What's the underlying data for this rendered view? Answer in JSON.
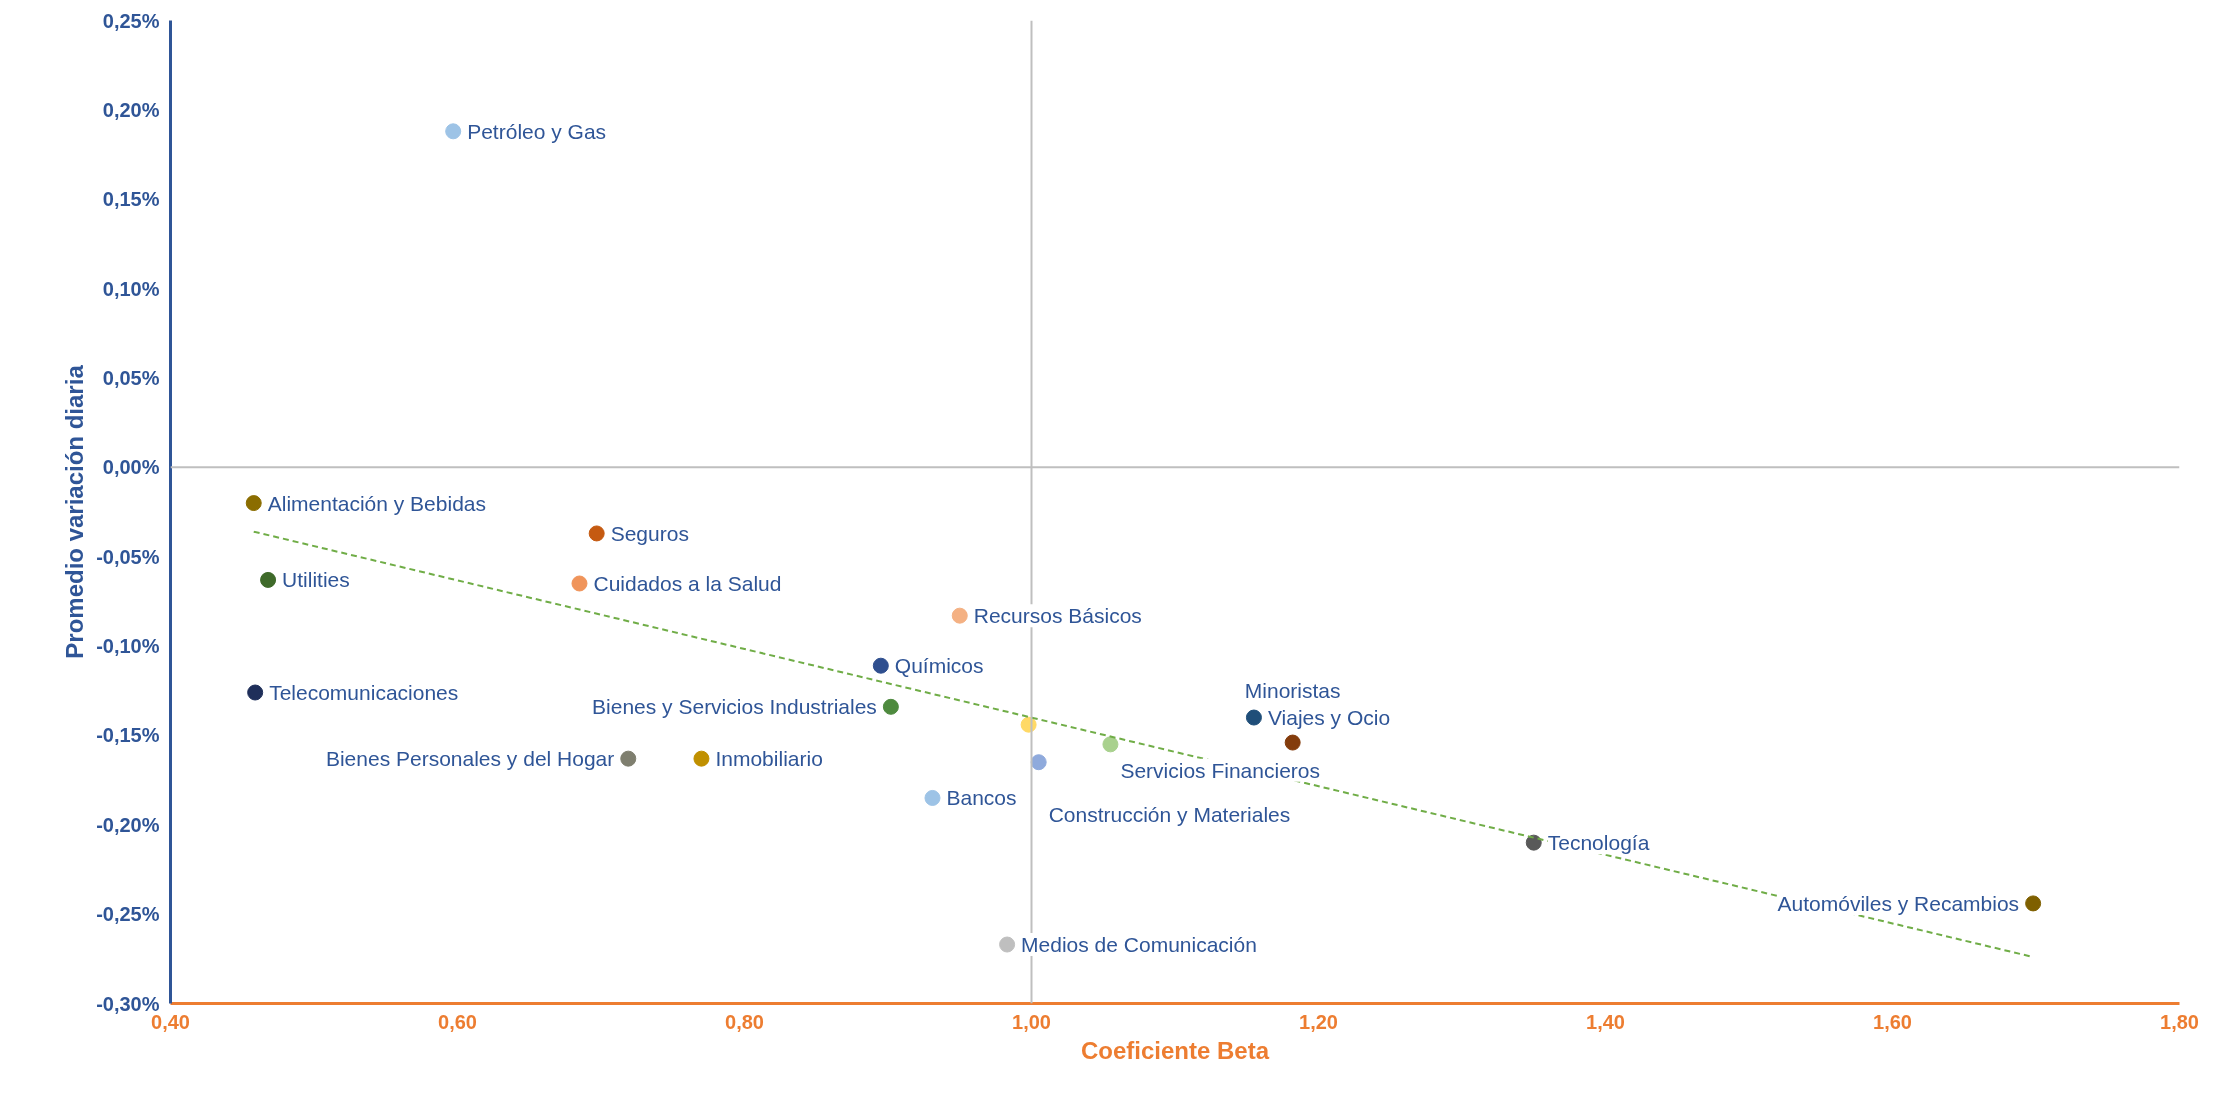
{
  "chart_data": {
    "type": "scatter",
    "xlabel": "Coeficiente Beta",
    "ylabel": "Promedio variación diaria",
    "xlim": [
      0.4,
      1.8
    ],
    "ylim": [
      -0.3,
      0.25
    ],
    "xticks": [
      {
        "value": 0.4,
        "label": "0,40"
      },
      {
        "value": 0.6,
        "label": "0,60"
      },
      {
        "value": 0.8,
        "label": "0,80"
      },
      {
        "value": 1.0,
        "label": "1,00"
      },
      {
        "value": 1.2,
        "label": "1,20"
      },
      {
        "value": 1.4,
        "label": "1,40"
      },
      {
        "value": 1.6,
        "label": "1,60"
      },
      {
        "value": 1.8,
        "label": "1,80"
      }
    ],
    "yticks": [
      {
        "value": -0.3,
        "label": "-0,30%"
      },
      {
        "value": -0.25,
        "label": "-0,25%"
      },
      {
        "value": -0.2,
        "label": "-0,20%"
      },
      {
        "value": -0.15,
        "label": "-0,15%"
      },
      {
        "value": -0.1,
        "label": "-0,10%"
      },
      {
        "value": -0.05,
        "label": "-0,05%"
      },
      {
        "value": 0.0,
        "label": "0,00%"
      },
      {
        "value": 0.05,
        "label": "0,05%"
      },
      {
        "value": 0.1,
        "label": "0,10%"
      },
      {
        "value": 0.15,
        "label": "0,15%"
      },
      {
        "value": 0.2,
        "label": "0,20%"
      },
      {
        "value": 0.25,
        "label": "0,25%"
      }
    ],
    "grid": false,
    "series": [
      {
        "marker": "circle",
        "x": [
          0.597,
          0.458,
          0.697,
          0.468,
          0.685,
          0.95,
          0.459,
          0.895,
          0.902,
          0.998,
          1.055,
          1.155,
          1.182,
          0.719,
          0.77,
          1.005,
          0.931,
          1.35,
          0.983,
          1.698
        ],
        "values": [
          0.188,
          -0.02,
          -0.037,
          -0.063,
          -0.065,
          -0.083,
          -0.126,
          -0.111,
          -0.134,
          -0.144,
          -0.155,
          -0.14,
          -0.154,
          -0.163,
          -0.163,
          -0.165,
          -0.185,
          -0.21,
          -0.267,
          -0.244
        ],
        "colors": [
          "#9dc3e6",
          "#8b6d00",
          "#c55a11",
          "#3f6a2a",
          "#f0945a",
          "#f4b183",
          "#1f2f5a",
          "#2f4f8f",
          "#4e8a3e",
          "#ffd966",
          "#a9d18e",
          "#1f4e79",
          "#843c0c",
          "#7f7f6f",
          "#c09000",
          "#8faadc",
          "#9dc3e6",
          "#595959",
          "#bfbfbf",
          "#7f6000"
        ]
      },
      {
        "type": "line",
        "x": [
          0.458,
          1.698
        ],
        "values": [
          -0.036,
          -0.274
        ],
        "color": "#70ad47",
        "line_style": "dashed"
      }
    ],
    "ref_lines": [
      {
        "axis": "x",
        "value": 1.0,
        "color": "#bfbfbf"
      },
      {
        "axis": "y",
        "value": 0.0,
        "color": "#bfbfbf"
      }
    ],
    "annotations": [
      {
        "text": "Petróleo y Gas",
        "x": 0.597,
        "y": 0.188
      },
      {
        "text": "Alimentación y Bebidas",
        "x": 0.458,
        "y": -0.02
      },
      {
        "text": "Seguros",
        "x": 0.697,
        "y": -0.037
      },
      {
        "text": "Utilities",
        "x": 0.468,
        "y": -0.063
      },
      {
        "text": "Cuidados a la Salud",
        "x": 0.685,
        "y": -0.065
      },
      {
        "text": "Recursos Básicos",
        "x": 0.95,
        "y": -0.083
      },
      {
        "text": "Telecomunicaciones",
        "x": 0.459,
        "y": -0.126
      },
      {
        "text": "Químicos",
        "x": 0.895,
        "y": -0.111
      },
      {
        "text": "Bienes y Servicios Industriales",
        "x": 0.902,
        "y": -0.134
      },
      {
        "text": "Servicios Financieros",
        "x": 1.055,
        "y": -0.155
      },
      {
        "text": "Viajes y Ocio",
        "x": 1.155,
        "y": -0.14
      },
      {
        "text": "Minoristas",
        "x": 1.182,
        "y": -0.154
      },
      {
        "text": "Bienes Personales y del Hogar",
        "x": 0.719,
        "y": -0.163
      },
      {
        "text": "Inmobiliario",
        "x": 0.77,
        "y": -0.163
      },
      {
        "text": "Construcción y Materiales",
        "x": 1.005,
        "y": -0.165
      },
      {
        "text": "Bancos",
        "x": 0.931,
        "y": -0.185
      },
      {
        "text": "Tecnología",
        "x": 1.35,
        "y": -0.21
      },
      {
        "text": "Medios de Comunicación",
        "x": 0.983,
        "y": -0.267
      },
      {
        "text": "Automóviles y Recambios",
        "x": 1.698,
        "y": -0.244
      }
    ]
  }
}
